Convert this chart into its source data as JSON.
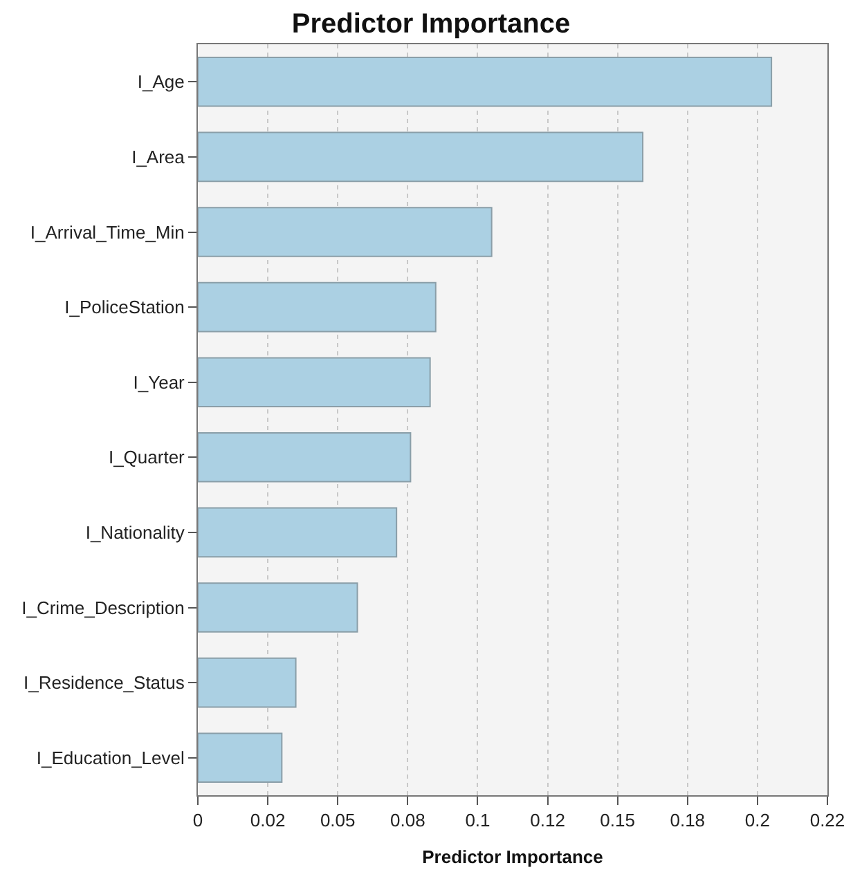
{
  "chart_data": {
    "type": "bar",
    "orientation": "horizontal",
    "title": "Predictor Importance",
    "xlabel": "Predictor Importance",
    "categories": [
      "I_Age",
      "I_Area",
      "I_Arrival_Time_Min",
      "I_PoliceStation",
      "I_Year",
      "I_Quarter",
      "I_Nationality",
      "I_Crime_Description",
      "I_Residence_Status",
      "I_Education_Level"
    ],
    "values": [
      0.205,
      0.159,
      0.105,
      0.085,
      0.083,
      0.076,
      0.071,
      0.057,
      0.035,
      0.03
    ],
    "color": "#abd0e3",
    "xlim": [
      0,
      0.225
    ],
    "xticks": [
      0,
      {
        "value": 0.025,
        "label": "0.02"
      },
      0.05,
      {
        "value": 0.075,
        "label": "0.08"
      },
      0.1,
      {
        "value": 0.125,
        "label": "0.12"
      },
      0.15,
      {
        "value": 0.175,
        "label": "0.18"
      },
      0.2,
      {
        "value": 0.225,
        "label": "0.22"
      }
    ],
    "grid": "x"
  }
}
